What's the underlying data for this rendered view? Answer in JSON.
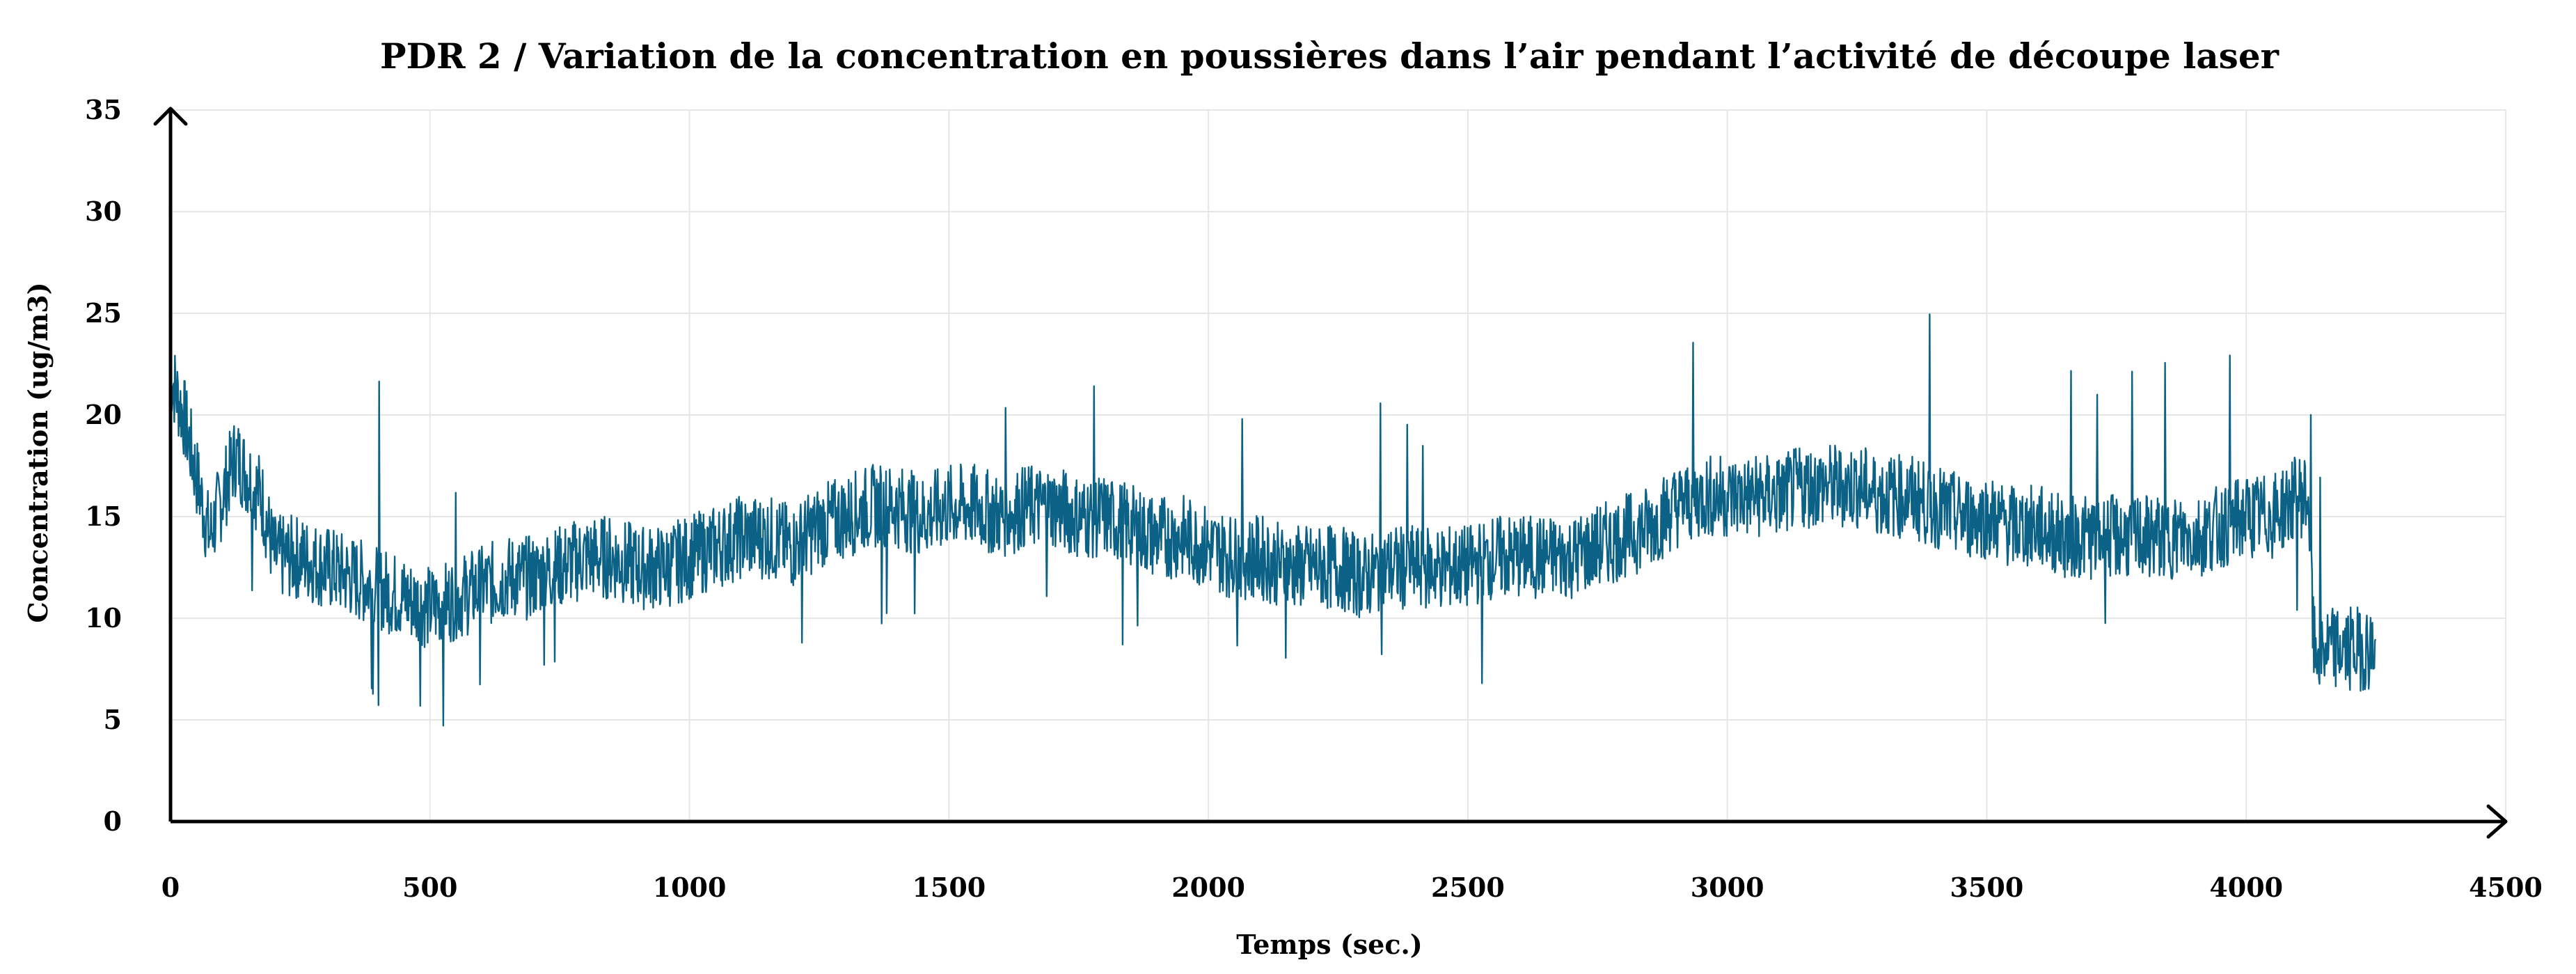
{
  "chart_data": {
    "type": "line",
    "title": "PDR 2 / Variation de la concentration en poussières dans l’air pendant l’activité de découpe laser",
    "xlabel": "Temps (sec.)",
    "ylabel": "Concentration (ug/m3)",
    "xlim": [
      0,
      4500
    ],
    "ylim": [
      0,
      35
    ],
    "xticks": [
      "0",
      "500",
      "1000",
      "1500",
      "2000",
      "2500",
      "3000",
      "3500",
      "4000",
      "4500"
    ],
    "yticks": [
      "0",
      "5",
      "10",
      "15",
      "20",
      "25",
      "30",
      "35"
    ],
    "grid": true,
    "legend": "none",
    "series": [
      {
        "color": "#0b6286",
        "x": [
          0,
          25,
          50,
          75,
          100,
          125,
          150,
          175,
          200,
          250,
          300,
          350,
          400,
          450,
          500,
          550,
          600,
          650,
          700,
          750,
          800,
          850,
          900,
          950,
          1000,
          1050,
          1100,
          1150,
          1200,
          1250,
          1300,
          1350,
          1400,
          1450,
          1500,
          1550,
          1600,
          1650,
          1700,
          1750,
          1800,
          1850,
          1900,
          1950,
          2000,
          2050,
          2100,
          2150,
          2200,
          2250,
          2300,
          2350,
          2400,
          2450,
          2500,
          2550,
          2600,
          2650,
          2700,
          2750,
          2800,
          2850,
          2900,
          2950,
          3000,
          3050,
          3100,
          3150,
          3200,
          3250,
          3300,
          3350,
          3400,
          3450,
          3500,
          3550,
          3600,
          3650,
          3700,
          3750,
          3800,
          3850,
          3900,
          3950,
          4000,
          4050,
          4100,
          4120,
          4130,
          4150,
          4200,
          4250
        ],
        "y": [
          22,
          20,
          17,
          14,
          16,
          18,
          17,
          16,
          13,
          13,
          12.5,
          12,
          11.5,
          11,
          10.5,
          11,
          11.5,
          12,
          12,
          12.5,
          13,
          13,
          12.5,
          12.5,
          13,
          13.5,
          14,
          14,
          13.5,
          14.5,
          15,
          15.5,
          15.5,
          15,
          15.5,
          15.5,
          15,
          15.5,
          15.5,
          15,
          15,
          14.5,
          14,
          14,
          13.5,
          13,
          13,
          12.5,
          12.5,
          12.5,
          12,
          12.5,
          12.5,
          12.5,
          12.5,
          13,
          13,
          13,
          13,
          13.5,
          14,
          14.5,
          15.5,
          16,
          16,
          16,
          16,
          16.5,
          16.5,
          16.5,
          16,
          16,
          15.5,
          15,
          15,
          14.5,
          14.5,
          14,
          14,
          14,
          14,
          14,
          14,
          14.5,
          15,
          15,
          16,
          16,
          8.5,
          8.5,
          8.5,
          8.5
        ]
      }
    ]
  }
}
